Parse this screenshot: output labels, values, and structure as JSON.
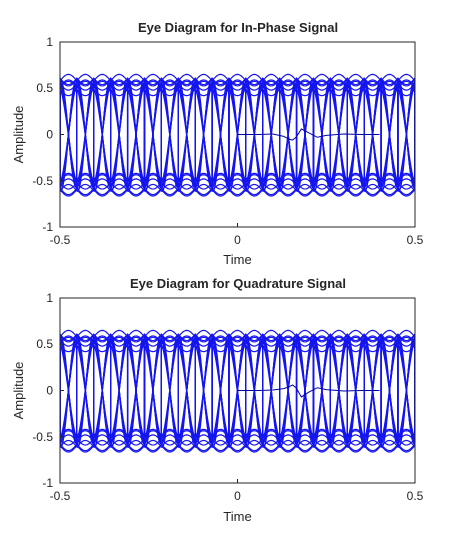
{
  "chart_data": [
    {
      "type": "line",
      "title": "Eye Diagram for In-Phase Signal",
      "xlabel": "Time",
      "ylabel": "Amplitude",
      "xlim": [
        -0.5,
        0.5
      ],
      "ylim": [
        -1,
        1
      ],
      "xticks": [
        "-0.5",
        "0",
        "0.5"
      ],
      "yticks": [
        "1",
        "0.5",
        "0",
        "-0.5",
        "-1"
      ],
      "grid": false,
      "eye": {
        "symbol_levels": [
          0.55,
          -0.55
        ],
        "symbol_period": 0.0476,
        "open_times": [
          -0.5,
          0.5
        ],
        "line_color": "#1515ee"
      },
      "pulse": {
        "x": [
          0.0,
          0.06,
          0.1,
          0.13,
          0.145,
          0.155,
          0.165,
          0.18,
          0.2,
          0.225,
          0.25,
          0.3,
          0.35,
          0.4
        ],
        "y": [
          0.0,
          0.0,
          0.005,
          -0.02,
          -0.05,
          -0.06,
          -0.03,
          0.06,
          0.02,
          -0.03,
          -0.01,
          0.005,
          0.0,
          0.0
        ]
      }
    },
    {
      "type": "line",
      "title": "Eye Diagram for Quadrature Signal",
      "xlabel": "Time",
      "ylabel": "Amplitude",
      "xlim": [
        -0.5,
        0.5
      ],
      "ylim": [
        -1,
        1
      ],
      "xticks": [
        "-0.5",
        "0",
        "0.5"
      ],
      "yticks": [
        "1",
        "0.5",
        "0",
        "-0.5",
        "-1"
      ],
      "grid": false,
      "eye": {
        "symbol_levels": [
          0.55,
          -0.55
        ],
        "symbol_period": 0.0476,
        "open_times": [
          -0.5,
          0.5
        ],
        "line_color": "#1515ee"
      },
      "pulse": {
        "x": [
          0.0,
          0.06,
          0.1,
          0.13,
          0.145,
          0.155,
          0.165,
          0.18,
          0.2,
          0.225,
          0.25,
          0.3,
          0.35,
          0.4
        ],
        "y": [
          0.0,
          0.0,
          0.005,
          0.02,
          0.04,
          0.06,
          0.03,
          -0.07,
          -0.02,
          0.03,
          0.01,
          -0.005,
          0.0,
          0.0
        ]
      }
    }
  ]
}
